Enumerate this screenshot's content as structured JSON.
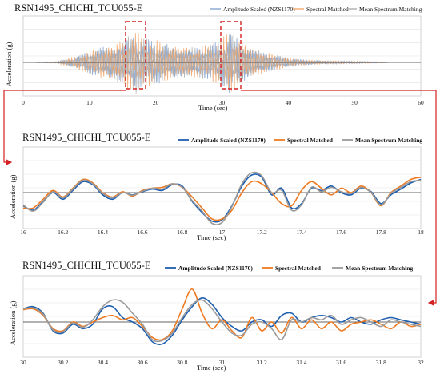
{
  "chart_data": [
    {
      "type": "line",
      "title": "RSN1495_CHICHI_TCU055-E",
      "xlabel": "Time (sec)",
      "ylabel": "Acceleration (g)",
      "xlim": [
        0,
        60
      ],
      "xticks": [
        0,
        10,
        20,
        30,
        40,
        50,
        60
      ],
      "ylim": [
        -1,
        1
      ],
      "grid": true,
      "legend_position": "top",
      "highlight_windows": [
        [
          16,
          18
        ],
        [
          30,
          32
        ]
      ],
      "series": [
        {
          "name": "Amplitude Scaled (NZS1170)",
          "color": "#7f9fcf",
          "x": [
            0,
            5,
            8,
            10,
            12,
            14,
            16,
            17,
            18,
            20,
            22,
            24,
            26,
            28,
            30,
            31,
            32,
            34,
            36,
            38,
            40,
            42,
            45,
            50,
            55
          ],
          "y": [
            0,
            0.02,
            0.15,
            0.3,
            0.45,
            0.5,
            0.7,
            0.75,
            0.6,
            0.55,
            0.5,
            0.45,
            0.4,
            0.45,
            0.55,
            0.9,
            0.7,
            0.45,
            0.3,
            0.2,
            0.12,
            0.08,
            0.05,
            0.03,
            0.01
          ]
        },
        {
          "name": "Spectral Matched",
          "color": "#f0a060",
          "x": [
            0,
            5,
            8,
            10,
            12,
            14,
            16,
            17,
            18,
            20,
            22,
            24,
            26,
            28,
            30,
            31,
            32,
            34,
            36,
            38,
            40,
            42,
            45,
            50,
            55
          ],
          "y": [
            0,
            0.02,
            0.16,
            0.32,
            0.48,
            0.55,
            0.72,
            0.8,
            0.65,
            0.58,
            0.5,
            0.47,
            0.42,
            0.45,
            0.6,
            0.85,
            0.72,
            0.5,
            0.32,
            0.2,
            0.12,
            0.08,
            0.05,
            0.03,
            0.01
          ]
        },
        {
          "name": "Mean Spectrum Matching",
          "color": "#a8a8a8",
          "x": [
            0,
            5,
            8,
            10,
            12,
            14,
            16,
            17,
            18,
            20,
            22,
            24,
            26,
            28,
            30,
            31,
            32,
            34,
            36,
            38,
            40,
            42,
            45,
            50,
            55
          ],
          "y": [
            0,
            0.02,
            0.14,
            0.3,
            0.45,
            0.52,
            0.7,
            0.78,
            0.62,
            0.55,
            0.48,
            0.45,
            0.4,
            0.43,
            0.55,
            0.8,
            0.68,
            0.46,
            0.3,
            0.19,
            0.11,
            0.07,
            0.05,
            0.03,
            0.01
          ]
        }
      ]
    },
    {
      "type": "line",
      "title": "RSN1495_CHICHI_TCU055-E",
      "xlabel": "Time (sec)",
      "ylabel": "Acceleration (g)",
      "xlim": [
        16,
        18
      ],
      "xticks": [
        16,
        16.2,
        16.4,
        16.6,
        16.8,
        17,
        17.2,
        17.4,
        17.6,
        17.8,
        18
      ],
      "ylim": [
        -1,
        1
      ],
      "grid": true,
      "legend_position": "top",
      "series": [
        {
          "name": "Amplitude Scaled (NZS1170)",
          "color": "#1f5fb0",
          "x": [
            16,
            16.05,
            16.1,
            16.15,
            16.2,
            16.25,
            16.3,
            16.35,
            16.4,
            16.45,
            16.5,
            16.55,
            16.6,
            16.65,
            16.7,
            16.75,
            16.8,
            16.85,
            16.9,
            16.95,
            17,
            17.05,
            17.1,
            17.15,
            17.2,
            17.25,
            17.3,
            17.35,
            17.4,
            17.45,
            17.5,
            17.55,
            17.6,
            17.65,
            17.7,
            17.75,
            17.8,
            17.85,
            17.9,
            17.95,
            18
          ],
          "y": [
            -0.3,
            -0.4,
            -0.2,
            0.0,
            -0.15,
            0.05,
            0.25,
            0.18,
            -0.05,
            -0.15,
            0.0,
            -0.05,
            0.02,
            0.08,
            0.05,
            0.18,
            0.15,
            -0.2,
            -0.45,
            -0.65,
            -0.62,
            -0.3,
            0.15,
            0.4,
            0.35,
            -0.05,
            0.1,
            -0.35,
            -0.25,
            0.1,
            0.05,
            0.15,
            0.0,
            -0.05,
            0.1,
            0.02,
            -0.25,
            -0.05,
            0.08,
            0.22,
            0.3
          ]
        },
        {
          "name": "Spectral Matched",
          "color": "#ee7a22",
          "x": [
            16,
            16.05,
            16.1,
            16.15,
            16.2,
            16.25,
            16.3,
            16.35,
            16.4,
            16.45,
            16.5,
            16.55,
            16.6,
            16.65,
            16.7,
            16.75,
            16.8,
            16.85,
            16.9,
            16.95,
            17,
            17.05,
            17.1,
            17.15,
            17.2,
            17.25,
            17.3,
            17.35,
            17.4,
            17.45,
            17.5,
            17.55,
            17.6,
            17.65,
            17.7,
            17.75,
            17.8,
            17.85,
            17.9,
            17.95,
            18
          ],
          "y": [
            -0.35,
            -0.35,
            -0.15,
            0.05,
            -0.1,
            0.1,
            0.3,
            0.22,
            0.0,
            -0.1,
            0.02,
            -0.08,
            0.05,
            0.1,
            0.12,
            0.2,
            0.12,
            -0.1,
            -0.35,
            -0.6,
            -0.6,
            -0.4,
            0.0,
            0.25,
            0.2,
            0.0,
            -0.25,
            -0.3,
            0.05,
            0.25,
            0.1,
            -0.05,
            0.1,
            0.0,
            0.15,
            0.0,
            -0.3,
            0.0,
            0.15,
            0.3,
            0.35
          ]
        },
        {
          "name": "Mean Spectrum Matching",
          "color": "#9a9a9a",
          "x": [
            16,
            16.05,
            16.1,
            16.15,
            16.2,
            16.25,
            16.3,
            16.35,
            16.4,
            16.45,
            16.5,
            16.55,
            16.6,
            16.65,
            16.7,
            16.75,
            16.8,
            16.85,
            16.9,
            16.95,
            17,
            17.05,
            17.1,
            17.15,
            17.2,
            17.25,
            17.3,
            17.35,
            17.4,
            17.45,
            17.5,
            17.55,
            17.6,
            17.65,
            17.7,
            17.75,
            17.8,
            17.85,
            17.9,
            17.95,
            18
          ],
          "y": [
            -0.28,
            -0.42,
            -0.22,
            0.02,
            -0.12,
            0.08,
            0.28,
            0.2,
            -0.02,
            -0.12,
            0.0,
            -0.06,
            0.03,
            0.1,
            0.08,
            0.2,
            0.12,
            -0.18,
            -0.42,
            -0.7,
            -0.68,
            -0.32,
            0.2,
            0.45,
            0.38,
            0.0,
            0.05,
            -0.4,
            -0.28,
            0.12,
            0.02,
            0.12,
            0.02,
            -0.02,
            0.12,
            0.0,
            -0.28,
            -0.02,
            0.12,
            0.25,
            0.28
          ]
        }
      ]
    },
    {
      "type": "line",
      "title": "RSN1495_CHICHI_TCU055-E",
      "xlabel": "Time (sec)",
      "ylabel": "Acceleration (g)",
      "xlim": [
        30,
        32
      ],
      "xticks": [
        30,
        30.2,
        30.4,
        30.6,
        30.8,
        31,
        31.2,
        31.4,
        31.6,
        31.8,
        32
      ],
      "ylim": [
        -1,
        1
      ],
      "grid": true,
      "legend_position": "top",
      "series": [
        {
          "name": "Amplitude Scaled (NZS1170)",
          "color": "#1f5fb0",
          "x": [
            30,
            30.05,
            30.1,
            30.15,
            30.2,
            30.25,
            30.3,
            30.35,
            30.4,
            30.45,
            30.5,
            30.55,
            30.6,
            30.65,
            30.7,
            30.75,
            30.8,
            30.85,
            30.9,
            30.95,
            31,
            31.05,
            31.1,
            31.15,
            31.2,
            31.25,
            31.3,
            31.35,
            31.4,
            31.45,
            31.5,
            31.55,
            31.6,
            31.65,
            31.7,
            31.75,
            31.8,
            31.85,
            31.9,
            31.95,
            32
          ],
          "y": [
            0.3,
            0.35,
            0.2,
            -0.2,
            -0.25,
            -0.05,
            -0.15,
            -0.05,
            0.3,
            0.35,
            0.1,
            0.0,
            -0.15,
            -0.45,
            -0.5,
            -0.3,
            0.05,
            0.35,
            0.55,
            0.4,
            0.1,
            -0.1,
            -0.2,
            0.0,
            0.05,
            -0.1,
            0.15,
            0.2,
            0.0,
            0.1,
            0.15,
            0.1,
            0.0,
            0.1,
            0.0,
            -0.05,
            0.05,
            0.1,
            0.05,
            0.0,
            -0.05
          ]
        },
        {
          "name": "Spectral Matched",
          "color": "#ee7a22",
          "x": [
            30,
            30.05,
            30.1,
            30.15,
            30.2,
            30.25,
            30.3,
            30.35,
            30.4,
            30.45,
            30.5,
            30.55,
            30.6,
            30.65,
            30.7,
            30.75,
            30.8,
            30.85,
            30.9,
            30.95,
            31,
            31.05,
            31.1,
            31.15,
            31.2,
            31.25,
            31.3,
            31.35,
            31.4,
            31.45,
            31.5,
            31.55,
            31.6,
            31.65,
            31.7,
            31.75,
            31.8,
            31.85,
            31.9,
            31.95,
            32
          ],
          "y": [
            0.28,
            0.3,
            0.15,
            -0.15,
            -0.2,
            0.0,
            -0.1,
            0.0,
            0.1,
            0.15,
            0.05,
            0.1,
            -0.1,
            -0.35,
            -0.4,
            -0.2,
            0.3,
            0.75,
            0.2,
            -0.15,
            0.05,
            -0.2,
            -0.35,
            0.1,
            -0.2,
            0.0,
            -0.25,
            0.1,
            -0.15,
            0.05,
            -0.15,
            0.0,
            -0.2,
            -0.05,
            0.0,
            0.05,
            -0.05,
            -0.15,
            0.0,
            -0.1,
            -0.05
          ]
        },
        {
          "name": "Mean Spectrum Matching",
          "color": "#9a9a9a",
          "x": [
            30,
            30.05,
            30.1,
            30.15,
            30.2,
            30.25,
            30.3,
            30.35,
            30.4,
            30.45,
            30.5,
            30.55,
            30.6,
            30.65,
            30.7,
            30.75,
            30.8,
            30.85,
            30.9,
            30.95,
            31,
            31.05,
            31.1,
            31.15,
            31.2,
            31.25,
            31.3,
            31.35,
            31.4,
            31.45,
            31.5,
            31.55,
            31.6,
            31.65,
            31.7,
            31.75,
            31.8,
            31.85,
            31.9,
            31.95,
            32
          ],
          "y": [
            0.3,
            0.32,
            0.18,
            -0.18,
            -0.22,
            -0.02,
            -0.12,
            0.05,
            0.35,
            0.5,
            0.45,
            0.2,
            -0.05,
            -0.4,
            -0.42,
            -0.25,
            0.1,
            0.4,
            0.5,
            0.3,
            0.0,
            -0.25,
            -0.3,
            -0.05,
            0.0,
            -0.15,
            -0.4,
            0.05,
            0.0,
            0.1,
            0.05,
            0.15,
            -0.05,
            0.05,
            0.1,
            0.0,
            -0.1,
            0.05,
            0.0,
            -0.05,
            -0.1
          ]
        }
      ]
    }
  ]
}
